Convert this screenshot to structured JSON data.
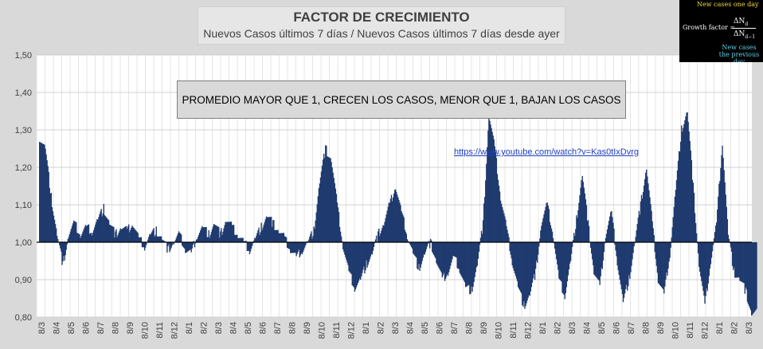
{
  "chart_data": {
    "type": "bar",
    "title": "FACTOR DE CRECIMIENTO",
    "subtitle": "Nuevos Casos últimos 7 días / Nuevos Casos últimos 7 días desde ayer",
    "xlabel": "",
    "ylabel": "",
    "ylim": [
      0.8,
      1.5
    ],
    "baseline": 1.0,
    "yticks": [
      "0,80",
      "0,90",
      "1,00",
      "1,10",
      "1,20",
      "1,30",
      "1,40",
      "1,50"
    ],
    "xticks": [
      "8/3",
      "8/4",
      "8/5",
      "8/6",
      "8/7",
      "8/8",
      "8/9",
      "8/10",
      "8/11",
      "8/12",
      "8/1",
      "8/2",
      "8/3",
      "8/4",
      "8/5",
      "8/6",
      "8/7",
      "8/8",
      "8/9",
      "8/10",
      "8/11",
      "8/12",
      "8/1",
      "8/2",
      "8/3",
      "8/4",
      "8/5",
      "8/6",
      "8/7",
      "8/8",
      "8/9",
      "8/10",
      "8/11",
      "8/12",
      "8/1",
      "8/2",
      "8/3",
      "8/4",
      "8/5",
      "8/6",
      "8/7",
      "8/8",
      "8/9",
      "8/10",
      "8/11",
      "8/12",
      "8/1",
      "8/2",
      "8/3"
    ],
    "grid": true,
    "bar_color": "#1f3a6e",
    "segments": [
      [
        0,
        1.28
      ],
      [
        1,
        1.25
      ],
      [
        2,
        1.12
      ],
      [
        3,
        1.02
      ],
      [
        4,
        0.94
      ],
      [
        5,
        1.02
      ],
      [
        6,
        1.05
      ],
      [
        7,
        1.02
      ],
      [
        8,
        1.04
      ],
      [
        9,
        1.03
      ],
      [
        10,
        1.06
      ],
      [
        11,
        1.09
      ],
      [
        12,
        1.05
      ],
      [
        13,
        1.02
      ],
      [
        14,
        1.04
      ],
      [
        15,
        1.03
      ],
      [
        16,
        1.05
      ],
      [
        17,
        1.01
      ],
      [
        18,
        0.99
      ],
      [
        19,
        1.02
      ],
      [
        20,
        1.03
      ],
      [
        21,
        1.01
      ],
      [
        22,
        0.98
      ],
      [
        23,
        1.0
      ],
      [
        24,
        1.02
      ],
      [
        25,
        0.98
      ],
      [
        26,
        0.97
      ],
      [
        27,
        1.02
      ],
      [
        28,
        1.04
      ],
      [
        29,
        1.02
      ],
      [
        30,
        1.05
      ],
      [
        31,
        1.02
      ],
      [
        32,
        1.06
      ],
      [
        33,
        1.04
      ],
      [
        34,
        1.02
      ],
      [
        35,
        1.0
      ],
      [
        36,
        0.98
      ],
      [
        37,
        1.01
      ],
      [
        38,
        1.04
      ],
      [
        39,
        1.07
      ],
      [
        40,
        1.05
      ],
      [
        41,
        1.03
      ],
      [
        42,
        1.01
      ],
      [
        43,
        0.98
      ],
      [
        44,
        0.96
      ],
      [
        45,
        0.98
      ],
      [
        46,
        1.0
      ],
      [
        47,
        1.03
      ],
      [
        48,
        1.16
      ],
      [
        49,
        1.25
      ],
      [
        50,
        1.22
      ],
      [
        51,
        1.1
      ],
      [
        52,
        0.99
      ],
      [
        53,
        0.92
      ],
      [
        54,
        0.88
      ],
      [
        55,
        0.9
      ],
      [
        56,
        0.94
      ],
      [
        57,
        0.97
      ],
      [
        58,
        1.02
      ],
      [
        59,
        1.05
      ],
      [
        60,
        1.1
      ],
      [
        61,
        1.15
      ],
      [
        62,
        1.08
      ],
      [
        63,
        1.02
      ],
      [
        64,
        0.97
      ],
      [
        65,
        0.93
      ],
      [
        66,
        0.97
      ],
      [
        67,
        1.0
      ],
      [
        68,
        0.95
      ],
      [
        69,
        0.9
      ],
      [
        70,
        0.92
      ],
      [
        71,
        0.96
      ],
      [
        72,
        0.93
      ],
      [
        73,
        0.88
      ],
      [
        74,
        0.87
      ],
      [
        75,
        0.94
      ],
      [
        76,
        1.05
      ],
      [
        77,
        1.34
      ],
      [
        78,
        1.25
      ],
      [
        79,
        1.12
      ],
      [
        80,
        1.04
      ],
      [
        81,
        0.95
      ],
      [
        82,
        0.88
      ],
      [
        83,
        0.83
      ],
      [
        84,
        0.86
      ],
      [
        85,
        0.92
      ],
      [
        86,
        1.05
      ],
      [
        87,
        1.1
      ],
      [
        88,
        1.02
      ],
      [
        89,
        0.9
      ],
      [
        90,
        0.86
      ],
      [
        91,
        0.95
      ],
      [
        92,
        1.06
      ],
      [
        93,
        1.18
      ],
      [
        94,
        1.05
      ],
      [
        95,
        0.92
      ],
      [
        96,
        0.88
      ],
      [
        97,
        1.02
      ],
      [
        98,
        1.08
      ],
      [
        99,
        0.95
      ],
      [
        100,
        0.84
      ],
      [
        101,
        0.9
      ],
      [
        102,
        1.0
      ],
      [
        103,
        1.1
      ],
      [
        104,
        1.2
      ],
      [
        105,
        1.05
      ],
      [
        106,
        0.9
      ],
      [
        107,
        0.86
      ],
      [
        108,
        0.97
      ],
      [
        109,
        1.14
      ],
      [
        110,
        1.3
      ],
      [
        111,
        1.35
      ],
      [
        112,
        1.15
      ],
      [
        113,
        0.94
      ],
      [
        114,
        0.83
      ],
      [
        115,
        0.95
      ],
      [
        116,
        1.05
      ],
      [
        117,
        1.27
      ],
      [
        118,
        1.02
      ],
      [
        119,
        0.92
      ],
      [
        120,
        0.9
      ],
      [
        121,
        0.87
      ],
      [
        122,
        0.81
      ]
    ]
  },
  "note_box": "PROMEDIO MAYOR QUE 1, CRECEN LOS CASOS, MENOR QUE 1, BAJAN LOS CASOS",
  "link_text": "https://www.youtube.com/watch?v=Kas0tIxDvrg",
  "formula": {
    "top": "New cases one day",
    "left": "Growth factor =",
    "numerator": "ΔN",
    "numerator_sub": "d",
    "denominator": "ΔN",
    "denominator_sub": "d−1",
    "bottom": "New cases the previous day"
  }
}
